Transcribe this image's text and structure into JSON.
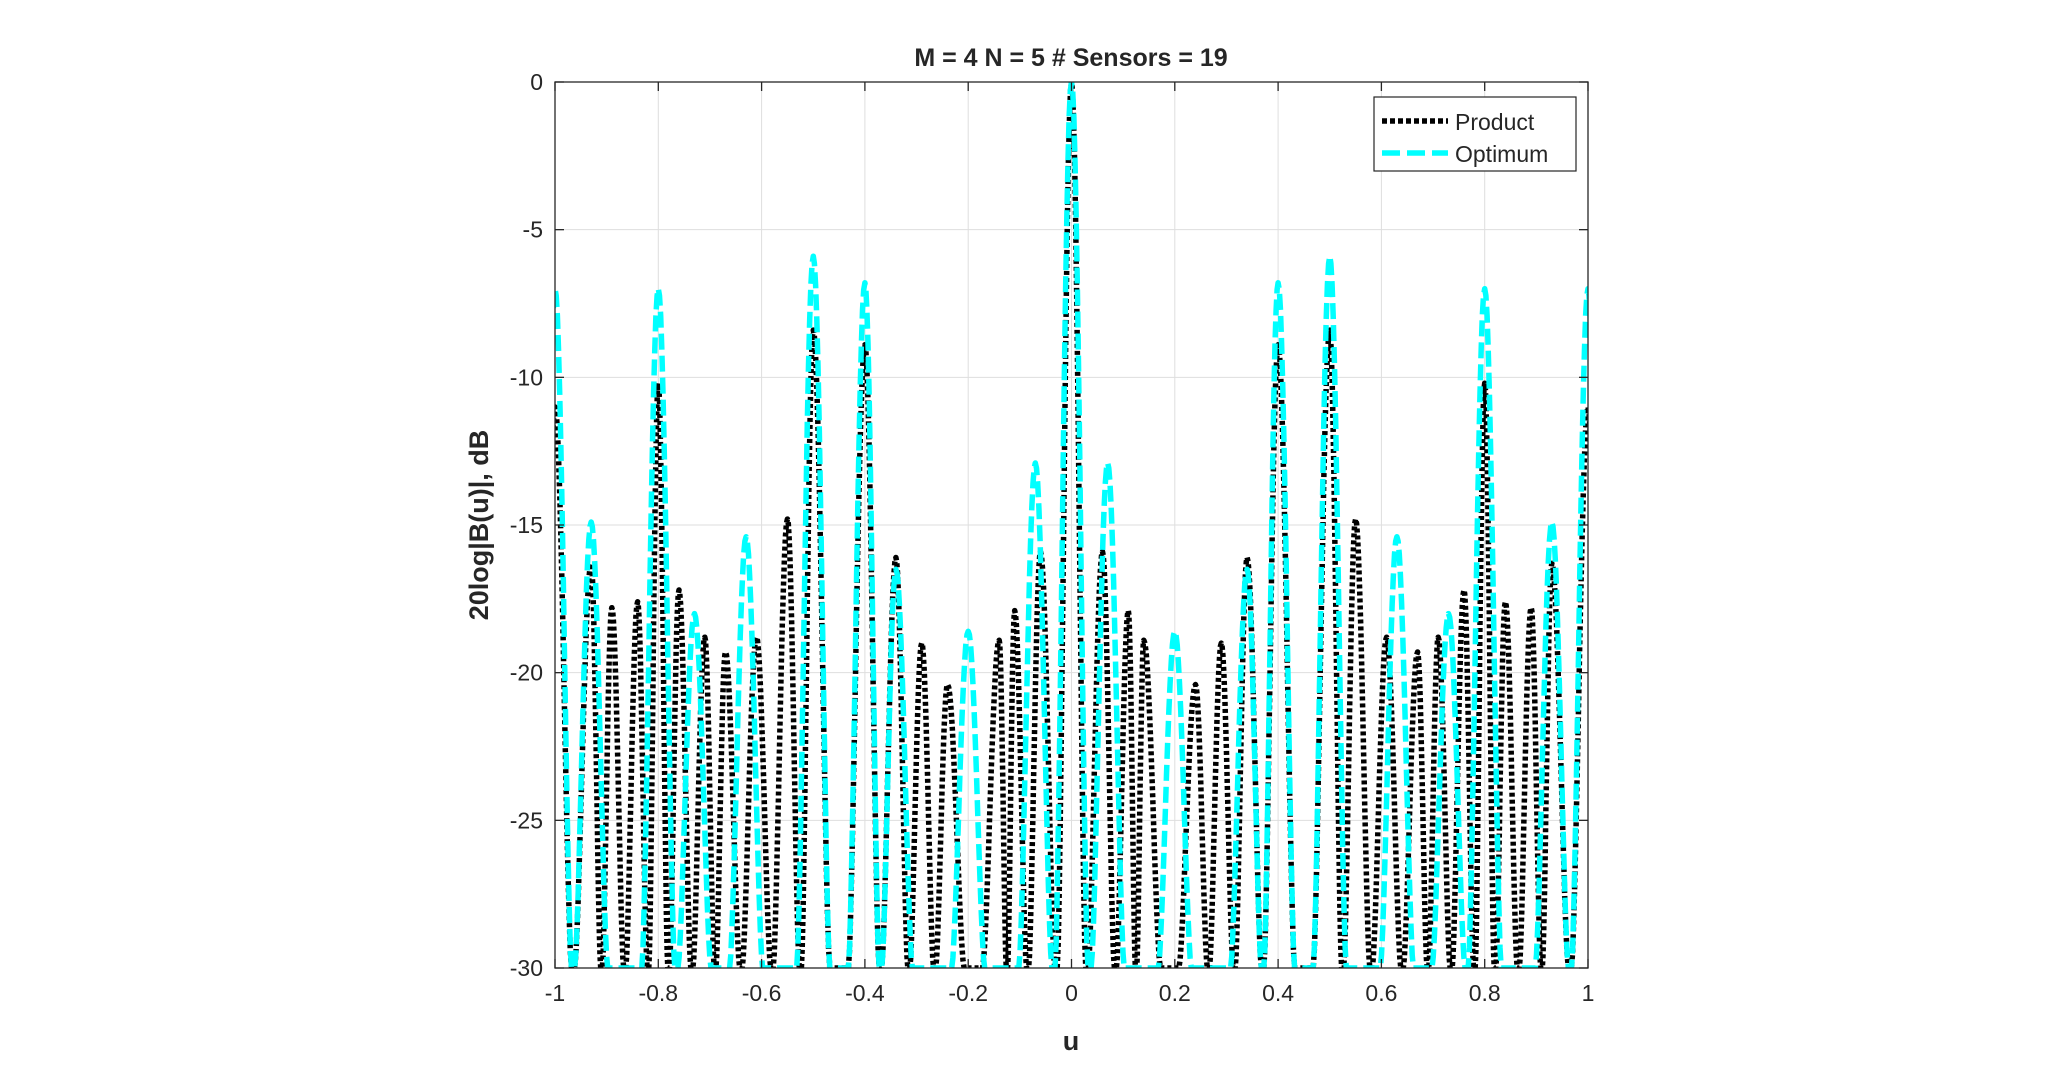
{
  "chart_data": {
    "type": "line",
    "title": "M = 4  N = 5  # Sensors = 19",
    "xlabel": "u",
    "ylabel": "20log|B(u)|, dB",
    "xlim": [
      -1,
      1
    ],
    "ylim": [
      -30,
      0
    ],
    "x_ticks": [
      -1,
      -0.8,
      -0.6,
      -0.4,
      -0.2,
      0,
      0.2,
      0.4,
      0.6,
      0.8,
      1
    ],
    "x_tick_labels": [
      "-1",
      "-0.8",
      "-0.6",
      "-0.4",
      "-0.2",
      "0",
      "0.2",
      "0.4",
      "0.6",
      "0.8",
      "1"
    ],
    "y_ticks": [
      0,
      -5,
      -10,
      -15,
      -20,
      -25,
      -30
    ],
    "y_tick_labels": [
      "0",
      "-5",
      "-10",
      "-15",
      "-20",
      "-25",
      "-30"
    ],
    "grid": true,
    "legend_position": "top-right",
    "array": {
      "M": 4,
      "N": 5
    },
    "series": [
      {
        "name": "Product",
        "color": "#000000",
        "style": "dotted",
        "peaks": [
          {
            "u": -1.0,
            "db": -11.0
          },
          {
            "u": -0.93,
            "db": -16.3
          },
          {
            "u": -0.89,
            "db": -17.8
          },
          {
            "u": -0.84,
            "db": -17.6
          },
          {
            "u": -0.8,
            "db": -10.2
          },
          {
            "u": -0.76,
            "db": -17.2
          },
          {
            "u": -0.71,
            "db": -18.8
          },
          {
            "u": -0.67,
            "db": -19.3
          },
          {
            "u": -0.61,
            "db": -18.8
          },
          {
            "u": -0.55,
            "db": -14.8
          },
          {
            "u": -0.5,
            "db": -8.4
          },
          {
            "u": -0.4,
            "db": -8.9
          },
          {
            "u": -0.34,
            "db": -16.1
          },
          {
            "u": -0.29,
            "db": -19.0
          },
          {
            "u": -0.24,
            "db": -20.4
          },
          {
            "u": -0.14,
            "db": -18.9
          },
          {
            "u": -0.11,
            "db": -17.9
          },
          {
            "u": -0.06,
            "db": -15.9
          },
          {
            "u": 0.0,
            "db": 0.0
          },
          {
            "u": 0.06,
            "db": -15.9
          },
          {
            "u": 0.11,
            "db": -17.9
          },
          {
            "u": 0.14,
            "db": -18.9
          },
          {
            "u": 0.24,
            "db": -20.4
          },
          {
            "u": 0.29,
            "db": -19.0
          },
          {
            "u": 0.34,
            "db": -16.1
          },
          {
            "u": 0.4,
            "db": -8.9
          },
          {
            "u": 0.5,
            "db": -8.4
          },
          {
            "u": 0.55,
            "db": -14.8
          },
          {
            "u": 0.61,
            "db": -18.8
          },
          {
            "u": 0.67,
            "db": -19.3
          },
          {
            "u": 0.71,
            "db": -18.8
          },
          {
            "u": 0.76,
            "db": -17.2
          },
          {
            "u": 0.8,
            "db": -10.2
          },
          {
            "u": 0.84,
            "db": -17.6
          },
          {
            "u": 0.89,
            "db": -17.8
          },
          {
            "u": 0.93,
            "db": -16.3
          },
          {
            "u": 1.0,
            "db": -11.0
          }
        ]
      },
      {
        "name": "Optimum",
        "color": "#00FFFF",
        "style": "dashed",
        "peaks": [
          {
            "u": -1.0,
            "db": -7.0
          },
          {
            "u": -0.93,
            "db": -14.9
          },
          {
            "u": -0.8,
            "db": -7.0
          },
          {
            "u": -0.73,
            "db": -18.0
          },
          {
            "u": -0.63,
            "db": -15.4
          },
          {
            "u": -0.5,
            "db": -5.9
          },
          {
            "u": -0.4,
            "db": -6.8
          },
          {
            "u": -0.34,
            "db": -16.5
          },
          {
            "u": -0.2,
            "db": -18.6
          },
          {
            "u": -0.07,
            "db": -12.9
          },
          {
            "u": 0.0,
            "db": 0.0
          },
          {
            "u": 0.07,
            "db": -12.9
          },
          {
            "u": 0.2,
            "db": -18.6
          },
          {
            "u": 0.34,
            "db": -16.5
          },
          {
            "u": 0.4,
            "db": -6.8
          },
          {
            "u": 0.5,
            "db": -5.9
          },
          {
            "u": 0.63,
            "db": -15.4
          },
          {
            "u": 0.73,
            "db": -18.0
          },
          {
            "u": 0.8,
            "db": -7.0
          },
          {
            "u": 0.93,
            "db": -14.9
          },
          {
            "u": 1.0,
            "db": -7.0
          }
        ]
      }
    ]
  }
}
